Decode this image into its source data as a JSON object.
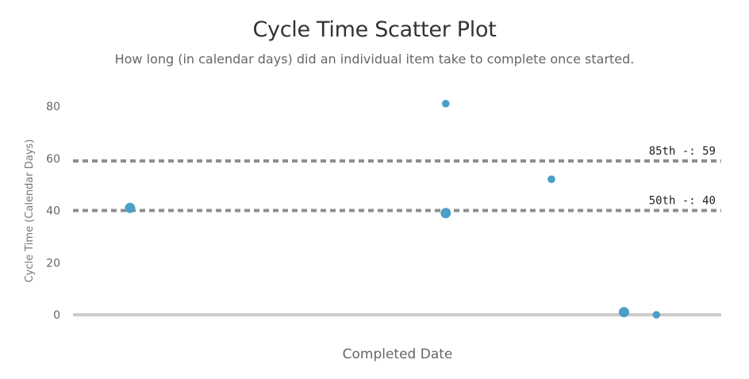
{
  "chart_data": {
    "type": "scatter",
    "title": "Cycle Time Scatter Plot",
    "subtitle": "How long (in calendar days) did an individual item take to complete once started.",
    "xlabel": "Completed Date",
    "ylabel": "Cycle Time (Calendar Days)",
    "ylim": [
      0,
      80
    ],
    "yticks": [
      "0",
      "20",
      "40",
      "60",
      "80"
    ],
    "grid": false,
    "legend": "none",
    "point_color": "#4a9fc8",
    "reference_lines": [
      {
        "label": "85th -: 59",
        "value": 59,
        "color": "#8e8e8e"
      },
      {
        "label": "50th -: 40",
        "value": 40,
        "color": "#8e8e8e"
      }
    ],
    "points": [
      {
        "x": 0.088,
        "y": 41,
        "size": "large"
      },
      {
        "x": 0.575,
        "y": 81,
        "size": "small"
      },
      {
        "x": 0.575,
        "y": 39,
        "size": "large"
      },
      {
        "x": 0.738,
        "y": 52,
        "size": "small"
      },
      {
        "x": 0.85,
        "y": 1,
        "size": "large"
      },
      {
        "x": 0.9,
        "y": 0,
        "size": "small"
      }
    ]
  }
}
